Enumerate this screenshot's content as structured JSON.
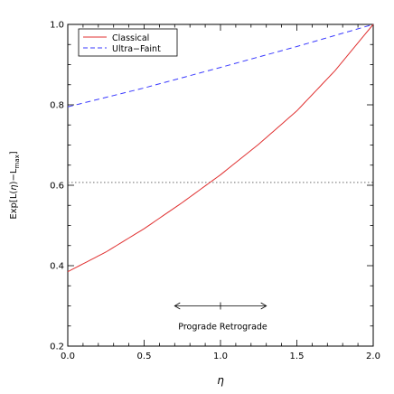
{
  "chart_data": {
    "type": "line",
    "title": "",
    "xlabel": "η",
    "ylabel_parts": {
      "prefix": "Exp[L(",
      "eta": "η",
      "mid": ")−L",
      "sub": "max",
      "suffix": "]"
    },
    "xlim": [
      0.0,
      2.0
    ],
    "ylim": [
      0.2,
      1.0
    ],
    "x_ticks": [
      "0.0",
      "0.5",
      "1.0",
      "1.5",
      "2.0"
    ],
    "y_ticks": [
      "0.2",
      "0.4",
      "0.6",
      "0.8",
      "1.0"
    ],
    "x_tick_values": [
      0.0,
      0.5,
      1.0,
      1.5,
      2.0
    ],
    "y_tick_values": [
      0.2,
      0.4,
      0.6,
      0.8,
      1.0
    ],
    "legend_position": "top-left",
    "series": [
      {
        "name": "Classical",
        "color": "#e03030",
        "style": "solid",
        "x": [
          0.0,
          0.25,
          0.5,
          0.75,
          1.0,
          1.25,
          1.5,
          1.75,
          2.0
        ],
        "y": [
          0.385,
          0.434,
          0.492,
          0.557,
          0.626,
          0.702,
          0.785,
          0.885,
          1.0
        ]
      },
      {
        "name": "Ultra−Faint",
        "color": "#3a3aff",
        "style": "dashed",
        "x": [
          0.0,
          0.5,
          1.0,
          1.5,
          2.0
        ],
        "y": [
          0.795,
          0.842,
          0.893,
          0.945,
          1.0
        ]
      }
    ],
    "reference_line": {
      "y": 0.607,
      "style": "dotted",
      "color": "#888888"
    },
    "annotation": {
      "arrow_x": [
        0.7,
        1.3
      ],
      "arrow_y": 0.3,
      "tick_x": 1.0,
      "left_label": "Prograde",
      "right_label": "Retrograde",
      "label_y": 0.242
    }
  }
}
